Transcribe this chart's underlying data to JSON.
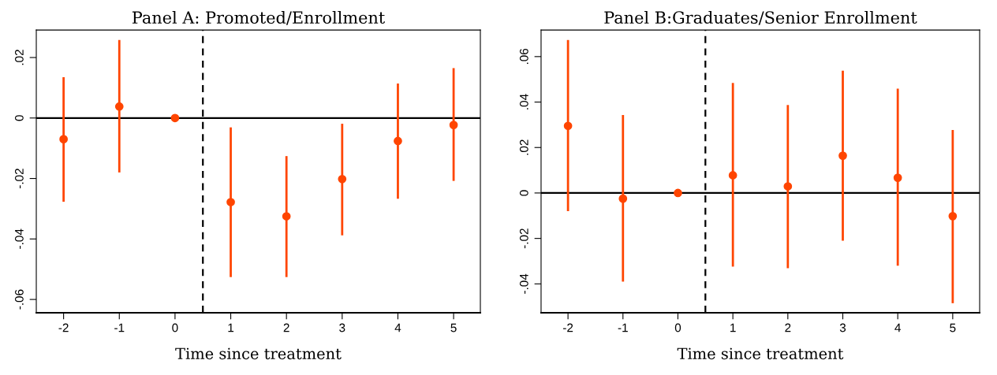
{
  "chart_data": [
    {
      "type": "scatter",
      "title": "Panel A: Promoted/Enrollment",
      "xlabel": "Time since treatment",
      "x": [
        -2,
        -1,
        0,
        1,
        2,
        3,
        4,
        5
      ],
      "xlim": [
        -2.49,
        5.48
      ],
      "xticks": [
        -2,
        -1,
        0,
        1,
        2,
        3,
        4,
        5
      ],
      "ylim": [
        -0.0644,
        0.0291
      ],
      "yticks": [
        {
          "value": -0.06,
          "label": "-.06"
        },
        {
          "value": -0.04,
          "label": "-.04"
        },
        {
          "value": -0.02,
          "label": "-.02"
        },
        {
          "value": 0,
          "label": "0"
        },
        {
          "value": 0.02,
          "label": ".02"
        }
      ],
      "series": [
        {
          "color": "#ff4500",
          "values": [
            -0.007,
            0.0038,
            0,
            -0.0278,
            -0.0325,
            -0.0202,
            -0.0076,
            -0.0023
          ],
          "errors": [
            [
              -0.0277,
              0.0135
            ],
            [
              -0.018,
              0.0258
            ],
            null,
            [
              -0.0526,
              -0.0031
            ],
            [
              -0.0526,
              -0.0126
            ],
            [
              -0.0388,
              -0.0019
            ],
            [
              -0.0267,
              0.0114
            ],
            [
              -0.0208,
              0.0165
            ]
          ]
        }
      ],
      "marker": "circle",
      "grid": false,
      "legend": false,
      "ref_lines": [
        {
          "axis": "y",
          "value": 0,
          "color": "#000000",
          "line_style": "solid"
        },
        {
          "axis": "x",
          "value": 0.5,
          "color": "#000000",
          "line_style": "dashed"
        }
      ]
    },
    {
      "type": "scatter",
      "title": "Panel B:Graduates/Senior Enrollment",
      "xlabel": "Time since treatment",
      "x": [
        -2,
        -1,
        0,
        1,
        2,
        3,
        4,
        5
      ],
      "xlim": [
        -2.49,
        5.49
      ],
      "xticks": [
        -2,
        -1,
        0,
        1,
        2,
        3,
        4,
        5
      ],
      "ylim": [
        -0.0527,
        0.0717
      ],
      "yticks": [
        {
          "value": -0.04,
          "label": "-.04"
        },
        {
          "value": -0.02,
          "label": "-.02"
        },
        {
          "value": 0,
          "label": "0"
        },
        {
          "value": 0.02,
          "label": ".02"
        },
        {
          "value": 0.04,
          "label": ".04"
        },
        {
          "value": 0.06,
          "label": ".06"
        }
      ],
      "series": [
        {
          "color": "#ff4500",
          "values": [
            0.0295,
            -0.0025,
            0,
            0.0078,
            0.0029,
            0.0164,
            0.0067,
            -0.0102
          ],
          "errors": [
            [
              -0.008,
              0.0673
            ],
            [
              -0.039,
              0.0343
            ],
            null,
            [
              -0.0324,
              0.0484
            ],
            [
              -0.0331,
              0.0387
            ],
            [
              -0.021,
              0.0538
            ],
            [
              -0.032,
              0.0459
            ],
            [
              -0.0485,
              0.0277
            ]
          ]
        }
      ],
      "marker": "circle",
      "grid": false,
      "legend": false,
      "ref_lines": [
        {
          "axis": "y",
          "value": 0,
          "color": "#000000",
          "line_style": "solid"
        },
        {
          "axis": "x",
          "value": 0.5,
          "color": "#000000",
          "line_style": "dashed"
        }
      ]
    }
  ]
}
